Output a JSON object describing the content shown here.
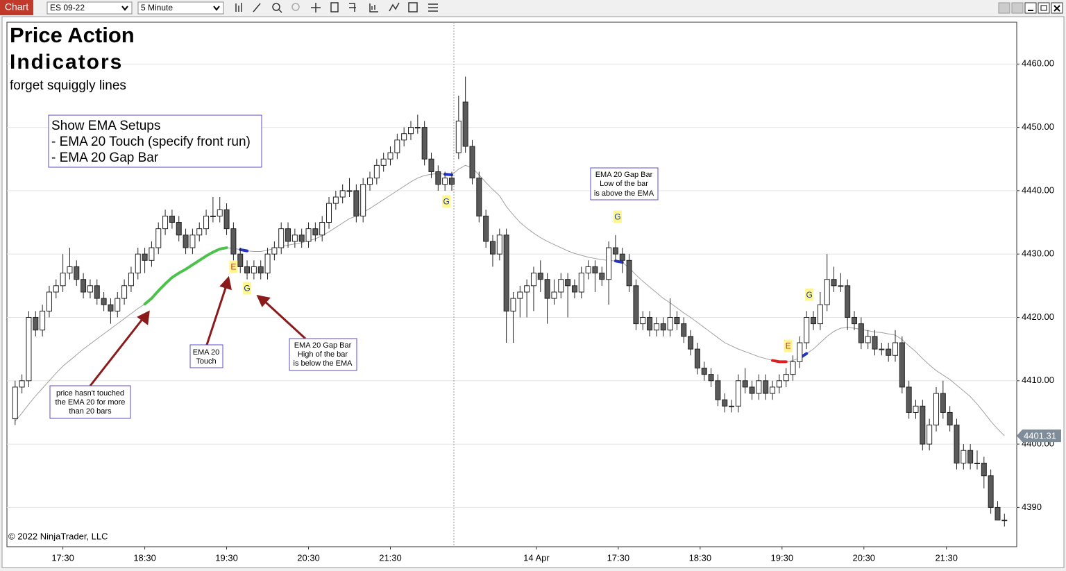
{
  "toolbar": {
    "tab": "Chart",
    "instrument": "ES 09-22",
    "interval": "5 Minute"
  },
  "overlay": {
    "title": "Price Action",
    "subtitle": "Indicators",
    "tagline": "forget squiggly lines",
    "copyright": "© 2022 NinjaTrader, LLC",
    "setups_box": [
      "Show EMA Setups",
      "- EMA 20 Touch (specify front run)",
      "- EMA 20 Gap Bar"
    ],
    "note_untouched": [
      "price hasn't touched",
      "the EMA 20 for more",
      "than 20 bars"
    ],
    "note_touch": [
      "EMA 20",
      "Touch"
    ],
    "note_gap_below": [
      "EMA 20 Gap Bar",
      "High of the bar",
      "is below the EMA"
    ],
    "note_gap_above": [
      "EMA 20 Gap Bar",
      "Low of the bar",
      "is above the EMA"
    ]
  },
  "chart_data": {
    "type": "candlestick",
    "xlim": [
      -1.2,
      146.8
    ],
    "ylim": [
      4383.8,
      4466.6
    ],
    "xticks": [
      {
        "value": 7,
        "label": "17:30"
      },
      {
        "value": 19,
        "label": "18:30"
      },
      {
        "value": 31,
        "label": "19:30"
      },
      {
        "value": 43,
        "label": "20:30"
      },
      {
        "value": 55,
        "label": "21:30"
      },
      {
        "value": 76.4,
        "label": "14 Apr"
      },
      {
        "value": 88.4,
        "label": "17:30"
      },
      {
        "value": 100.4,
        "label": "18:30"
      },
      {
        "value": 112.4,
        "label": "19:30"
      },
      {
        "value": 124.4,
        "label": "20:30"
      },
      {
        "value": 136.5,
        "label": "21:30"
      }
    ],
    "yticks": [
      4390,
      {
        "value": 4400,
        "label": "4400.00"
      },
      {
        "value": 4410,
        "label": "4410.00"
      },
      {
        "value": 4420,
        "label": "4420.00"
      },
      {
        "value": 4430,
        "label": "4430.00"
      },
      {
        "value": 4440,
        "label": "4440.00"
      },
      {
        "value": 4450,
        "label": "4450.00"
      },
      {
        "value": 4460,
        "label": "4460.00"
      }
    ],
    "grid": true,
    "up_color": "#ffffff",
    "down_color": "#5a5a5a",
    "ohlc": [
      [
        4404,
        4410,
        4403,
        4409
      ],
      [
        4409,
        4411,
        4408,
        4410
      ],
      [
        4410,
        4421,
        4409,
        4420
      ],
      [
        4420,
        4421,
        4417,
        4418
      ],
      [
        4418,
        4422,
        4417,
        4421
      ],
      [
        4421,
        4425,
        4420,
        4424
      ],
      [
        4424,
        4426,
        4423,
        4425
      ],
      [
        4425,
        4430,
        4424,
        4427
      ],
      [
        4427,
        4431,
        4426,
        4428
      ],
      [
        4428,
        4429,
        4425,
        4426
      ],
      [
        4426,
        4427,
        4423,
        4424
      ],
      [
        4424,
        4426,
        4423,
        4425
      ],
      [
        4425,
        4426,
        4422,
        4423
      ],
      [
        4423,
        4424,
        4421,
        4422
      ],
      [
        4422,
        4423,
        4419,
        4421
      ],
      [
        4421,
        4424,
        4420,
        4423
      ],
      [
        4423,
        4426,
        4422,
        4425
      ],
      [
        4425,
        4428,
        4424,
        4427
      ],
      [
        4427,
        4431,
        4426,
        4430
      ],
      [
        4430,
        4431,
        4427,
        4429
      ],
      [
        4429,
        4432,
        4428,
        4431
      ],
      [
        4431,
        4435,
        4430,
        4434
      ],
      [
        4434,
        4437,
        4433,
        4436
      ],
      [
        4436,
        4437,
        4434,
        4435
      ],
      [
        4435,
        4436,
        4432,
        4433
      ],
      [
        4433,
        4434,
        4430,
        4431
      ],
      [
        4431,
        4434,
        4430,
        4433
      ],
      [
        4433,
        4435,
        4432,
        4434
      ],
      [
        4434,
        4437,
        4433,
        4436
      ],
      [
        4436,
        4439,
        4435,
        4436
      ],
      [
        4436,
        4439,
        4435,
        4437
      ],
      [
        4437,
        4438,
        4433,
        4434
      ],
      [
        4434,
        4435,
        4429,
        4430
      ],
      [
        4430,
        4431,
        4427,
        4428
      ],
      [
        4428,
        4429,
        4426,
        4427
      ],
      [
        4427,
        4429,
        4426,
        4428
      ],
      [
        4428,
        4429,
        4426,
        4427
      ],
      [
        4427,
        4431,
        4426,
        4430
      ],
      [
        4430,
        4432,
        4429,
        4431
      ],
      [
        4431,
        4435,
        4430,
        4434
      ],
      [
        4434,
        4435,
        4431,
        4432
      ],
      [
        4432,
        4434,
        4431,
        4433
      ],
      [
        4433,
        4434,
        4431,
        4432
      ],
      [
        4432,
        4435,
        4431,
        4434
      ],
      [
        4434,
        4435,
        4432,
        4433
      ],
      [
        4433,
        4436,
        4432,
        4435
      ],
      [
        4435,
        4439,
        4434,
        4438
      ],
      [
        4438,
        4440,
        4437,
        4439
      ],
      [
        4439,
        4441,
        4438,
        4440
      ],
      [
        4440,
        4442,
        4439,
        4440
      ],
      [
        4440,
        4441,
        4435,
        4436
      ],
      [
        4436,
        4442,
        4435,
        4441
      ],
      [
        4441,
        4443,
        4440,
        4442
      ],
      [
        4442,
        4445,
        4441,
        4444
      ],
      [
        4444,
        4446,
        4443,
        4445
      ],
      [
        4445,
        4447,
        4444,
        4446
      ],
      [
        4446,
        4449,
        4445,
        4448
      ],
      [
        4448,
        4450,
        4447,
        4449
      ],
      [
        4449,
        4451,
        4448,
        4450
      ],
      [
        4450,
        4452,
        4449,
        4450
      ],
      [
        4450,
        4451,
        4444,
        4445
      ],
      [
        4445,
        4446,
        4442,
        4443
      ],
      [
        4443,
        4444,
        4440,
        4441
      ],
      [
        4441,
        4443,
        4440,
        4442
      ],
      [
        4442,
        4443,
        4440,
        4441
      ],
      [
        4446,
        4455,
        4445,
        4451
      ],
      [
        4454,
        4458,
        4446,
        4447
      ],
      [
        4447,
        4448,
        4441,
        4442
      ],
      [
        4442,
        4443,
        4435,
        4436
      ],
      [
        4436,
        4437,
        4431,
        4432
      ],
      [
        4432,
        4433,
        4428,
        4430
      ],
      [
        4430,
        4434,
        4429,
        4433
      ],
      [
        4433,
        4434,
        4416,
        4421
      ],
      [
        4421,
        4424,
        4416,
        4423
      ],
      [
        4423,
        4425,
        4420,
        4424
      ],
      [
        4424,
        4426,
        4420,
        4425
      ],
      [
        4425,
        4428,
        4421,
        4427
      ],
      [
        4427,
        4429,
        4424,
        4426
      ],
      [
        4426,
        4427,
        4419,
        4423
      ],
      [
        4423,
        4426,
        4422,
        4424
      ],
      [
        4424,
        4427,
        4423,
        4426
      ],
      [
        4426,
        4427,
        4420,
        4425
      ],
      [
        4425,
        4426,
        4423,
        4424
      ],
      [
        4424,
        4428,
        4423,
        4427
      ],
      [
        4427,
        4429,
        4426,
        4428
      ],
      [
        4428,
        4429,
        4424,
        4427
      ],
      [
        4427,
        4428,
        4425,
        4426
      ],
      [
        4426,
        4432,
        4422,
        4431
      ],
      [
        4431,
        4433,
        4429,
        4430
      ],
      [
        4430,
        4431,
        4427,
        4429
      ],
      [
        4429,
        4430,
        4424,
        4425
      ],
      [
        4425,
        4426,
        4418,
        4419
      ],
      [
        4419,
        4421,
        4418,
        4420
      ],
      [
        4420,
        4421,
        4417,
        4418
      ],
      [
        4418,
        4420,
        4417,
        4419
      ],
      [
        4419,
        4420,
        4417,
        4418
      ],
      [
        4418,
        4423,
        4417,
        4420
      ],
      [
        4420,
        4421,
        4418,
        4419
      ],
      [
        4419,
        4420,
        4416,
        4417
      ],
      [
        4417,
        4418,
        4414,
        4415
      ],
      [
        4415,
        4416,
        4411,
        4412
      ],
      [
        4412,
        4413,
        4410,
        4411
      ],
      [
        4411,
        4412,
        4409,
        4410
      ],
      [
        4410,
        4411,
        4406,
        4407
      ],
      [
        4407,
        4408,
        4405,
        4406
      ],
      [
        4406,
        4407,
        4405,
        4406
      ],
      [
        4406,
        4411,
        4405,
        4410
      ],
      [
        4410,
        4412,
        4408,
        4409
      ],
      [
        4409,
        4410,
        4407,
        4408
      ],
      [
        4408,
        4411,
        4407,
        4410
      ],
      [
        4410,
        4411,
        4407,
        4408
      ],
      [
        4408,
        4410,
        4407,
        4409
      ],
      [
        4409,
        4411,
        4408,
        4410
      ],
      [
        4410,
        4412,
        4409,
        4411
      ],
      [
        4411,
        4414,
        4410,
        4413
      ],
      [
        4413,
        4417,
        4412,
        4416
      ],
      [
        4416,
        4421,
        4415,
        4420
      ],
      [
        4420,
        4421,
        4418,
        4419
      ],
      [
        4419,
        4424,
        4418,
        4422
      ],
      [
        4422,
        4430,
        4421,
        4426
      ],
      [
        4426,
        4428,
        4424,
        4425
      ],
      [
        4425,
        4427,
        4424,
        4425
      ],
      [
        4425,
        4426,
        4418,
        4420
      ],
      [
        4420,
        4421,
        4418,
        4419
      ],
      [
        4419,
        4420,
        4415,
        4416
      ],
      [
        4416,
        4418,
        4415,
        4417
      ],
      [
        4417,
        4418,
        4414,
        4415
      ],
      [
        4415,
        4416,
        4414,
        4415
      ],
      [
        4415,
        4416,
        4413,
        4414
      ],
      [
        4414,
        4418,
        4413,
        4416
      ],
      [
        4416,
        4417,
        4408,
        4409
      ],
      [
        4409,
        4410,
        4404,
        4405
      ],
      [
        4405,
        4407,
        4404,
        4406
      ],
      [
        4406,
        4407,
        4399,
        4400
      ],
      [
        4400,
        4404,
        4399,
        4403
      ],
      [
        4403,
        4409,
        4402,
        4408
      ],
      [
        4408,
        4410,
        4404,
        4405
      ],
      [
        4405,
        4406,
        4402,
        4403
      ],
      [
        4403,
        4404,
        4396,
        4397
      ],
      [
        4397,
        4400,
        4396,
        4399
      ],
      [
        4399,
        4400,
        4396,
        4397
      ],
      [
        4397,
        4399,
        4396,
        4397
      ],
      [
        4397,
        4398,
        4393,
        4395
      ],
      [
        4395,
        4396,
        4389,
        4390
      ],
      [
        4390,
        4391,
        4388,
        4388
      ],
      [
        4388,
        4389,
        4387,
        4388
      ]
    ],
    "ema": {
      "color": "#a0a0a0",
      "values": [
        4403.6,
        4404.9,
        4406.3,
        4407.6,
        4408.8,
        4410,
        4411.2,
        4412.3,
        4413.2,
        4414.1,
        4415,
        4415.8,
        4416.6,
        4417.4,
        4418.2,
        4419,
        4419.8,
        4420.6,
        4421.4,
        4422.1,
        4423,
        4424.2,
        4425.3,
        4426.3,
        4427,
        4427.6,
        4428.3,
        4429,
        4429.7,
        4430.3,
        4430.8,
        4431,
        4430.9,
        4430.7,
        4430.5,
        4430.4,
        4430.4,
        4430.6,
        4430.9,
        4431.2,
        4431.4,
        4431.6,
        4431.8,
        4432.1,
        4432.4,
        4432.9,
        4433.5,
        4434.2,
        4434.9,
        4435.6,
        4436,
        4436.6,
        4437.2,
        4437.9,
        4438.6,
        4439.3,
        4440,
        4440.7,
        4441.4,
        4442,
        4442.4,
        4442.6,
        4442.7,
        4442.6,
        4442.5,
        4443.4,
        4444,
        4443.6,
        4442.5,
        4441.3,
        4440.2,
        4439.2,
        4437.5,
        4436.2,
        4435,
        4434.1,
        4433.3,
        4432.6,
        4432,
        4431.5,
        4431,
        4430.5,
        4430.1,
        4429.8,
        4429.5,
        4429.3,
        4429.1,
        4429,
        4428.9,
        4428.7,
        4427.8,
        4426.7,
        4425.7,
        4424.8,
        4423.9,
        4423,
        4422.3,
        4421.5,
        4420.7,
        4420,
        4419.2,
        4418.4,
        4417.6,
        4416.8,
        4416,
        4415.5,
        4415,
        4414.6,
        4414.2,
        4413.8,
        4413.5,
        4413.2,
        4413,
        4413,
        4413.2,
        4413.6,
        4414.3,
        4415,
        4416,
        4417,
        4417.8,
        4418.3,
        4418.4,
        4418.3,
        4418.1,
        4417.9,
        4417.7,
        4417.6,
        4417.4,
        4417.2,
        4416.5,
        4415.5,
        4414.6,
        4413.5,
        4412.5,
        4411.6,
        4410.9,
        4410.2,
        4409.3,
        4408.4,
        4407.5,
        4406.3,
        4405,
        4403.6,
        4402.4,
        4401.31
      ]
    },
    "highlights": [
      {
        "from": 19,
        "to": 31,
        "color": "#4cc24c"
      },
      {
        "from": 33,
        "to": 34,
        "color": "#2233cc"
      },
      {
        "from": 63,
        "to": 64,
        "color": "#2233cc"
      },
      {
        "from": 88,
        "to": 89,
        "color": "#2233cc"
      },
      {
        "from": 111,
        "to": 113,
        "color": "#e02020"
      },
      {
        "from": 115,
        "to": 116,
        "color": "#2233cc"
      }
    ],
    "markers": [
      {
        "text": "E",
        "x": 32,
        "y": 4428,
        "color": "#c0392b"
      },
      {
        "text": "G",
        "x": 34,
        "y": 4424.6,
        "color": "#1a3a99"
      },
      {
        "text": "G",
        "x": 63.2,
        "y": 4438.3,
        "color": "#1a3a99"
      },
      {
        "text": "G",
        "x": 88.3,
        "y": 4435.9,
        "color": "#1a3a99"
      },
      {
        "text": "E",
        "x": 113.3,
        "y": 4415.5,
        "color": "#c0392b"
      },
      {
        "text": "G",
        "x": 116.4,
        "y": 4423.6,
        "color": "#1a3a99"
      }
    ]
  }
}
